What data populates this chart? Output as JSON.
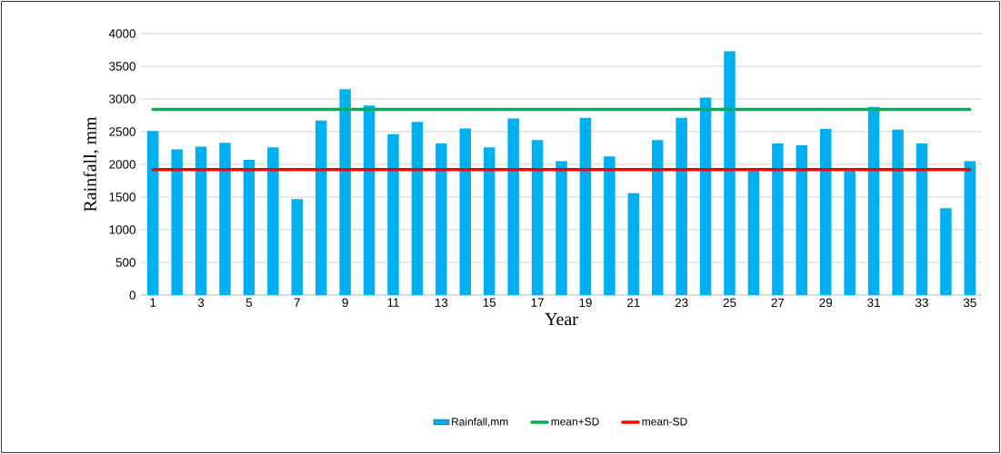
{
  "chart_data": {
    "type": "bar",
    "xlabel": "Year",
    "ylabel": "Rainfall, mm",
    "categories": [
      "1",
      null,
      "3",
      null,
      "5",
      null,
      "7",
      null,
      "9",
      null,
      "11",
      null,
      "13",
      null,
      "15",
      null,
      "17",
      null,
      "19",
      null,
      "21",
      null,
      "23",
      null,
      "25",
      null,
      "27",
      null,
      "29",
      null,
      "31",
      null,
      "33",
      null,
      "35"
    ],
    "series": [
      {
        "name": "Rainfall,mm",
        "color": "#00b0f0",
        "values": [
          2510,
          2230,
          2270,
          2330,
          2070,
          2260,
          1470,
          2670,
          3150,
          2900,
          2460,
          2650,
          2320,
          2550,
          2260,
          2700,
          2370,
          2050,
          2710,
          2120,
          1560,
          2370,
          2710,
          3020,
          3730,
          1900,
          2320,
          2290,
          2540,
          1900,
          2880,
          2530,
          2320,
          1330,
          2050
        ]
      },
      {
        "name": "mean+SD",
        "type": "line",
        "color": "#00b050",
        "values": [
          2840,
          2840,
          2840,
          2840,
          2840,
          2840,
          2840,
          2840,
          2840,
          2840,
          2840,
          2840,
          2840,
          2840,
          2840,
          2840,
          2840,
          2840,
          2840,
          2840,
          2840,
          2840,
          2840,
          2840,
          2840,
          2840,
          2840,
          2840,
          2840,
          2840,
          2840,
          2840,
          2840,
          2840,
          2840
        ]
      },
      {
        "name": "mean-SD",
        "type": "line",
        "color": "#ff0000",
        "values": [
          1920,
          1920,
          1920,
          1920,
          1920,
          1920,
          1920,
          1920,
          1920,
          1920,
          1920,
          1920,
          1920,
          1920,
          1920,
          1920,
          1920,
          1920,
          1920,
          1920,
          1920,
          1920,
          1920,
          1920,
          1920,
          1920,
          1920,
          1920,
          1920,
          1920,
          1920,
          1920,
          1920,
          1920,
          1920
        ]
      }
    ],
    "ylim": [
      0,
      4000
    ],
    "yticks": [
      0,
      500,
      1000,
      1500,
      2000,
      2500,
      3000,
      3500,
      4000
    ],
    "grid": "y",
    "legend": "bottom"
  }
}
